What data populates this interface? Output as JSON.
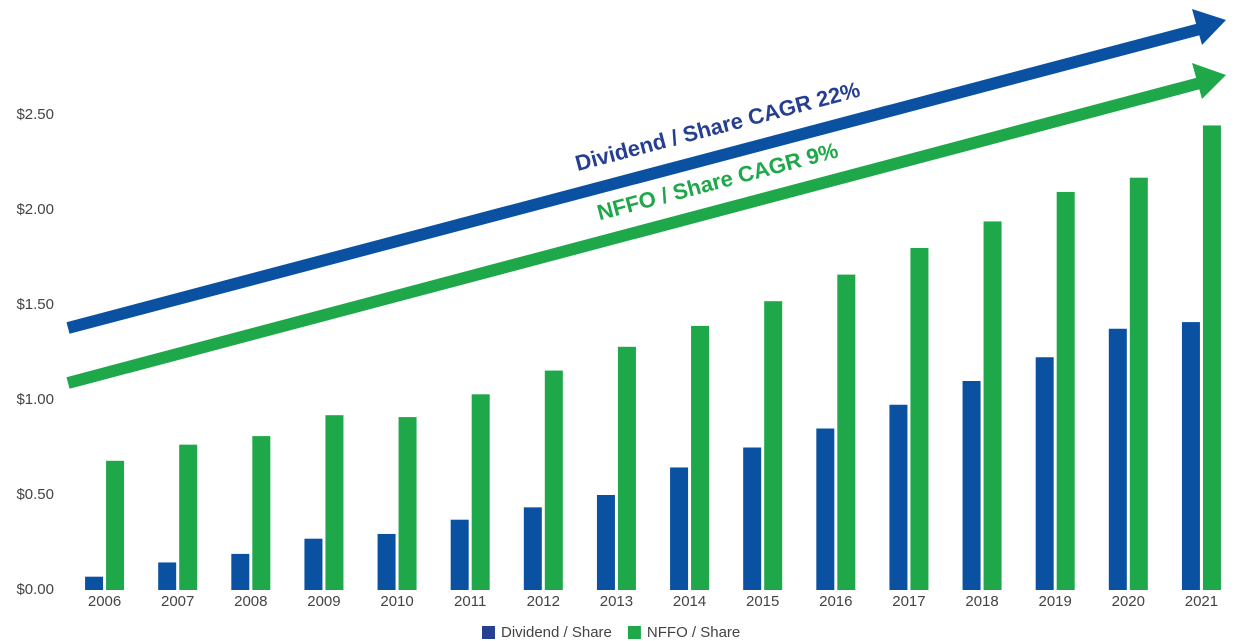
{
  "chart_data": {
    "type": "bar",
    "categories": [
      "2006",
      "2007",
      "2008",
      "2009",
      "2010",
      "2011",
      "2012",
      "2013",
      "2014",
      "2015",
      "2016",
      "2017",
      "2018",
      "2019",
      "2020",
      "2021"
    ],
    "series": [
      {
        "name": "Dividend / Share",
        "color": "#0b51a1",
        "values": [
          0.07,
          0.145,
          0.19,
          0.27,
          0.295,
          0.37,
          0.435,
          0.5,
          0.645,
          0.75,
          0.85,
          0.975,
          1.1,
          1.225,
          1.375,
          1.41
        ]
      },
      {
        "name": "NFFO / Share",
        "color": "#1ea84a",
        "values": [
          0.68,
          0.765,
          0.81,
          0.92,
          0.91,
          1.03,
          1.155,
          1.28,
          1.39,
          1.52,
          1.66,
          1.8,
          1.94,
          2.095,
          2.17,
          2.445
        ]
      }
    ],
    "ylim": [
      0,
      2.5
    ],
    "yticks": [
      {
        "value": 0,
        "label": "$0.00"
      },
      {
        "value": 0.5,
        "label": "$0.50"
      },
      {
        "value": 1,
        "label": "$1.00"
      },
      {
        "value": 1.5,
        "label": "$1.50"
      },
      {
        "value": 2,
        "label": "$2.00"
      },
      {
        "value": 2.5,
        "label": "$2.50"
      }
    ],
    "annotations": [
      {
        "text": "Dividend / Share CAGR 22%",
        "color": "#263f91"
      },
      {
        "text": "NFFO / Share CAGR 9%",
        "color": "#1ea84a"
      }
    ],
    "legend": "bottom"
  }
}
